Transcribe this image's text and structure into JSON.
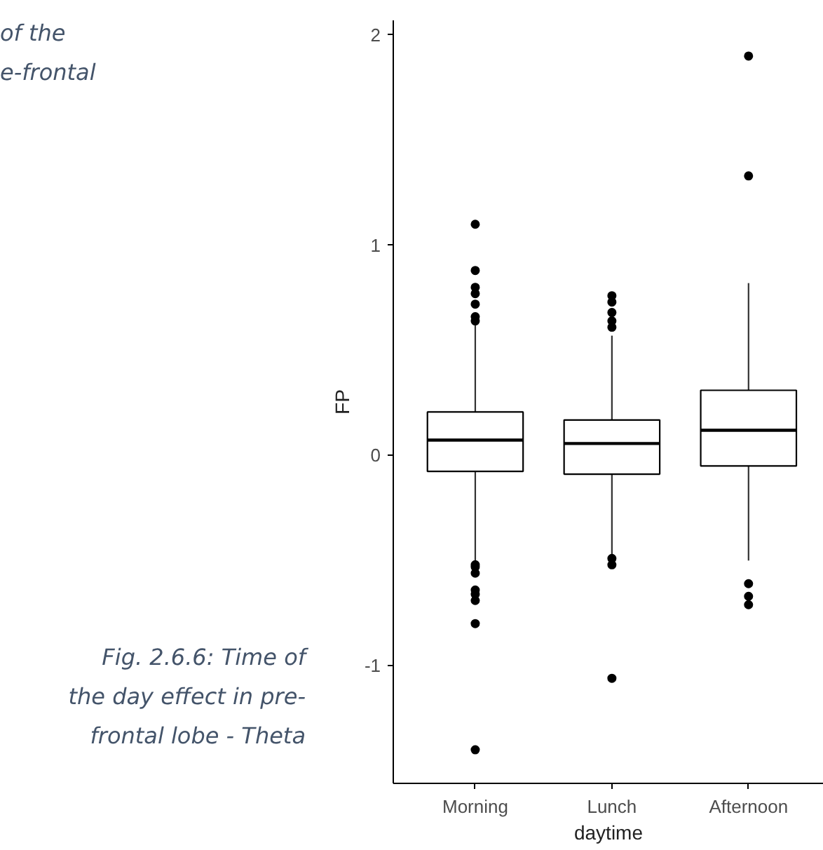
{
  "chart_data": {
    "type": "box",
    "xlabel": "daytime",
    "ylabel": "FP",
    "categories": [
      "Morning",
      "Lunch",
      "Afternoon"
    ],
    "boxes": [
      {
        "low": -0.5,
        "q1": -0.076,
        "median": 0.073,
        "q3": 0.207,
        "high": 0.63,
        "outliers": [
          1.1,
          0.88,
          0.8,
          0.77,
          0.72,
          0.66,
          0.64,
          -0.52,
          -0.53,
          -0.56,
          -0.64,
          -0.66,
          -0.69,
          -0.8,
          -1.4
        ]
      },
      {
        "low": -0.47,
        "q1": -0.089,
        "median": 0.057,
        "q3": 0.169,
        "high": 0.57,
        "outliers": [
          0.76,
          0.73,
          0.68,
          0.64,
          0.61,
          -0.49,
          -0.52,
          -1.06
        ]
      },
      {
        "low": -0.5,
        "q1": -0.05,
        "median": 0.12,
        "q3": 0.31,
        "high": 0.82,
        "outliers": [
          1.9,
          1.33,
          -0.61,
          -0.67,
          -0.71
        ]
      }
    ],
    "color": "#000000",
    "ylim": [
      -1.56,
      2.07
    ],
    "yticks": [
      -1,
      0,
      1,
      2
    ],
    "grid": false,
    "annotations": [
      "of the\ne-frontal",
      "Fig. 2.6.6: Time of\nthe day effect in pre-\nfrontal lobe - Theta"
    ]
  }
}
